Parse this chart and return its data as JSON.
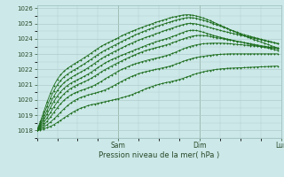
{
  "title": "",
  "xlabel": "Pression niveau de la mer( hPa )",
  "ylabel": "",
  "ylim": [
    1017.5,
    1026.2
  ],
  "xlim": [
    0,
    72
  ],
  "yticks": [
    1018,
    1019,
    1020,
    1021,
    1022,
    1023,
    1024,
    1025
  ],
  "day_labels": [
    {
      "label": "Sam",
      "x": 24
    },
    {
      "label": "Dim",
      "x": 48
    },
    {
      "label": "Lun",
      "x": 72
    }
  ],
  "bg_color": "#cce8e8",
  "grid_color": "#b0cccc",
  "line_color": "#1a6b1a",
  "marker_color": "#1a6b1a",
  "series": [
    [
      1018.0,
      1018.05,
      1018.1,
      1018.18,
      1018.27,
      1018.38,
      1018.52,
      1018.67,
      1018.82,
      1018.97,
      1019.12,
      1019.25,
      1019.37,
      1019.47,
      1019.55,
      1019.62,
      1019.68,
      1019.73,
      1019.78,
      1019.83,
      1019.88,
      1019.93,
      1019.98,
      1020.03,
      1020.08,
      1020.14,
      1020.2,
      1020.27,
      1020.35,
      1020.44,
      1020.53,
      1020.63,
      1020.72,
      1020.81,
      1020.89,
      1020.96,
      1021.02,
      1021.08,
      1021.13,
      1021.18,
      1021.23,
      1021.28,
      1021.34,
      1021.41,
      1021.49,
      1021.57,
      1021.65,
      1021.72,
      1021.78,
      1021.84,
      1021.89,
      1021.93,
      1021.97,
      1022.0,
      1022.03,
      1022.05,
      1022.07,
      1022.08,
      1022.09,
      1022.1,
      1022.11,
      1022.12,
      1022.13,
      1022.14,
      1022.15,
      1022.16,
      1022.17,
      1022.18,
      1022.19,
      1022.2,
      1022.21,
      1022.22
    ],
    [
      1018.0,
      1018.1,
      1018.22,
      1018.37,
      1018.55,
      1018.75,
      1018.97,
      1019.2,
      1019.42,
      1019.62,
      1019.8,
      1019.95,
      1020.07,
      1020.17,
      1020.25,
      1020.32,
      1020.38,
      1020.44,
      1020.5,
      1020.57,
      1020.65,
      1020.75,
      1020.86,
      1020.98,
      1021.1,
      1021.22,
      1021.34,
      1021.45,
      1021.55,
      1021.64,
      1021.72,
      1021.79,
      1021.85,
      1021.9,
      1021.95,
      1022.0,
      1022.05,
      1022.1,
      1022.15,
      1022.2,
      1022.27,
      1022.35,
      1022.43,
      1022.52,
      1022.6,
      1022.67,
      1022.73,
      1022.78,
      1022.82,
      1022.86,
      1022.89,
      1022.92,
      1022.95,
      1022.97,
      1022.99,
      1023.0,
      1023.01,
      1023.02,
      1023.02,
      1023.02,
      1023.02,
      1023.02,
      1023.02,
      1023.02,
      1023.02,
      1023.02,
      1023.02,
      1023.02,
      1023.02,
      1023.02,
      1023.02,
      1023.02
    ],
    [
      1018.0,
      1018.15,
      1018.35,
      1018.6,
      1018.88,
      1019.18,
      1019.48,
      1019.75,
      1019.98,
      1020.17,
      1020.32,
      1020.44,
      1020.54,
      1020.62,
      1020.7,
      1020.78,
      1020.87,
      1020.97,
      1021.09,
      1021.22,
      1021.36,
      1021.5,
      1021.63,
      1021.76,
      1021.88,
      1022.0,
      1022.1,
      1022.2,
      1022.29,
      1022.37,
      1022.44,
      1022.51,
      1022.57,
      1022.63,
      1022.68,
      1022.73,
      1022.78,
      1022.84,
      1022.9,
      1022.97,
      1023.05,
      1023.14,
      1023.24,
      1023.33,
      1023.42,
      1023.5,
      1023.56,
      1023.61,
      1023.65,
      1023.68,
      1023.7,
      1023.71,
      1023.72,
      1023.72,
      1023.72,
      1023.71,
      1023.7,
      1023.68,
      1023.66,
      1023.64,
      1023.62,
      1023.6,
      1023.58,
      1023.56,
      1023.54,
      1023.52,
      1023.5,
      1023.48,
      1023.46,
      1023.44,
      1023.42,
      1023.4
    ],
    [
      1018.0,
      1018.22,
      1018.5,
      1018.83,
      1019.18,
      1019.54,
      1019.87,
      1020.16,
      1020.4,
      1020.6,
      1020.76,
      1020.89,
      1021.0,
      1021.1,
      1021.19,
      1021.3,
      1021.42,
      1021.56,
      1021.7,
      1021.84,
      1021.98,
      1022.1,
      1022.22,
      1022.34,
      1022.45,
      1022.56,
      1022.67,
      1022.77,
      1022.87,
      1022.97,
      1023.06,
      1023.15,
      1023.23,
      1023.3,
      1023.36,
      1023.42,
      1023.48,
      1023.54,
      1023.6,
      1023.67,
      1023.75,
      1023.83,
      1023.91,
      1023.99,
      1024.07,
      1024.14,
      1024.19,
      1024.22,
      1024.23,
      1024.22,
      1024.2,
      1024.16,
      1024.12,
      1024.08,
      1024.04,
      1024.0,
      1023.96,
      1023.92,
      1023.88,
      1023.84,
      1023.8,
      1023.76,
      1023.72,
      1023.68,
      1023.64,
      1023.6,
      1023.56,
      1023.52,
      1023.48,
      1023.44,
      1023.4,
      1023.36
    ],
    [
      1018.0,
      1018.3,
      1018.67,
      1019.08,
      1019.5,
      1019.9,
      1020.25,
      1020.54,
      1020.77,
      1020.95,
      1021.1,
      1021.22,
      1021.33,
      1021.44,
      1021.56,
      1021.68,
      1021.82,
      1021.97,
      1022.12,
      1022.27,
      1022.41,
      1022.53,
      1022.64,
      1022.74,
      1022.84,
      1022.93,
      1023.02,
      1023.11,
      1023.2,
      1023.29,
      1023.38,
      1023.47,
      1023.56,
      1023.65,
      1023.73,
      1023.8,
      1023.87,
      1023.94,
      1024.01,
      1024.08,
      1024.16,
      1024.24,
      1024.33,
      1024.42,
      1024.5,
      1024.55,
      1024.57,
      1024.55,
      1024.5,
      1024.44,
      1024.37,
      1024.3,
      1024.23,
      1024.17,
      1024.11,
      1024.05,
      1024.0,
      1023.95,
      1023.9,
      1023.85,
      1023.8,
      1023.75,
      1023.7,
      1023.65,
      1023.6,
      1023.55,
      1023.5,
      1023.45,
      1023.4,
      1023.35,
      1023.3,
      1023.25
    ],
    [
      1018.0,
      1018.38,
      1018.83,
      1019.32,
      1019.8,
      1020.24,
      1020.61,
      1020.9,
      1021.13,
      1021.31,
      1021.46,
      1021.59,
      1021.71,
      1021.83,
      1021.96,
      1022.1,
      1022.25,
      1022.4,
      1022.56,
      1022.7,
      1022.84,
      1022.96,
      1023.08,
      1023.19,
      1023.3,
      1023.41,
      1023.52,
      1023.63,
      1023.73,
      1023.83,
      1023.92,
      1024.01,
      1024.09,
      1024.17,
      1024.25,
      1024.33,
      1024.41,
      1024.49,
      1024.57,
      1024.65,
      1024.72,
      1024.79,
      1024.86,
      1024.93,
      1024.99,
      1025.02,
      1025.01,
      1024.98,
      1024.93,
      1024.87,
      1024.81,
      1024.74,
      1024.68,
      1024.62,
      1024.56,
      1024.5,
      1024.45,
      1024.4,
      1024.35,
      1024.3,
      1024.25,
      1024.2,
      1024.15,
      1024.1,
      1024.05,
      1024.0,
      1023.95,
      1023.9,
      1023.85,
      1023.8,
      1023.75,
      1023.7
    ],
    [
      1018.0,
      1018.48,
      1019.03,
      1019.6,
      1020.13,
      1020.6,
      1020.98,
      1021.28,
      1021.51,
      1021.69,
      1021.84,
      1021.97,
      1022.1,
      1022.23,
      1022.37,
      1022.52,
      1022.67,
      1022.83,
      1022.98,
      1023.12,
      1023.25,
      1023.37,
      1023.49,
      1023.6,
      1023.71,
      1023.83,
      1023.94,
      1024.05,
      1024.16,
      1024.26,
      1024.36,
      1024.45,
      1024.54,
      1024.63,
      1024.71,
      1024.79,
      1024.87,
      1024.95,
      1025.02,
      1025.09,
      1025.16,
      1025.23,
      1025.29,
      1025.34,
      1025.38,
      1025.4,
      1025.38,
      1025.35,
      1025.29,
      1025.23,
      1025.16,
      1025.08,
      1025.0,
      1024.92,
      1024.84,
      1024.76,
      1024.68,
      1024.6,
      1024.52,
      1024.44,
      1024.36,
      1024.28,
      1024.22,
      1024.16,
      1024.1,
      1024.04,
      1023.98,
      1023.92,
      1023.86,
      1023.8,
      1023.74,
      1023.68
    ],
    [
      1018.0,
      1018.58,
      1019.22,
      1019.87,
      1020.45,
      1020.95,
      1021.35,
      1021.65,
      1021.88,
      1022.07,
      1022.22,
      1022.36,
      1022.5,
      1022.63,
      1022.77,
      1022.92,
      1023.07,
      1023.23,
      1023.38,
      1023.52,
      1023.64,
      1023.75,
      1023.86,
      1023.97,
      1024.08,
      1024.2,
      1024.31,
      1024.41,
      1024.5,
      1024.59,
      1024.67,
      1024.76,
      1024.84,
      1024.92,
      1025.0,
      1025.08,
      1025.15,
      1025.22,
      1025.29,
      1025.36,
      1025.42,
      1025.47,
      1025.52,
      1025.56,
      1025.58,
      1025.58,
      1025.55,
      1025.5,
      1025.44,
      1025.37,
      1025.29,
      1025.2,
      1025.1,
      1025.0,
      1024.9,
      1024.8,
      1024.7,
      1024.6,
      1024.5,
      1024.4,
      1024.3,
      1024.2,
      1024.12,
      1024.04,
      1023.96,
      1023.88,
      1023.8,
      1023.72,
      1023.64,
      1023.56,
      1023.48,
      1023.4
    ]
  ]
}
